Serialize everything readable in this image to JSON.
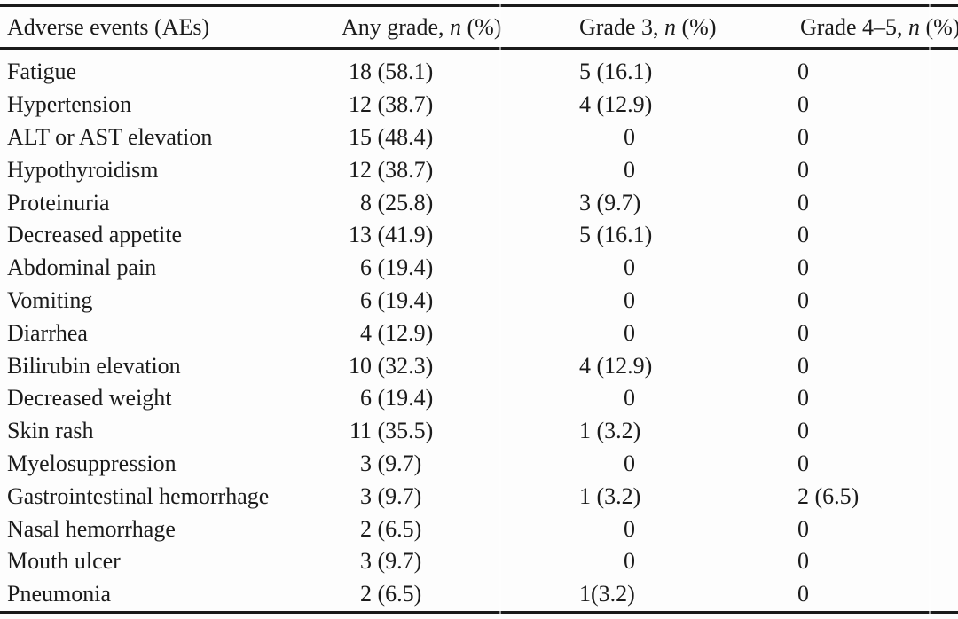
{
  "page": {
    "background_color": "#fdfdfd",
    "text_color": "#1b1b1b",
    "rule_color": "#1a1a1a"
  },
  "table": {
    "header": {
      "ae": "Adverse events (AEs)",
      "any_grade": {
        "pre": "Any grade, ",
        "n": "n",
        "post": " (%)"
      },
      "grade3": {
        "pre": "Grade 3, ",
        "n": "n",
        "post": " (%)"
      },
      "grade45": {
        "pre": "Grade 4–5, ",
        "n": "n",
        "post": " (%)"
      }
    },
    "rows": [
      {
        "ae": "Fatigue",
        "any_grade": {
          "n": "18",
          "rest": " (58.1)"
        },
        "grade3": {
          "n": "5",
          "rest": " (16.1)"
        },
        "grade45": {
          "n": "0",
          "rest": ""
        }
      },
      {
        "ae": "Hypertension",
        "any_grade": {
          "n": "12",
          "rest": " (38.7)"
        },
        "grade3": {
          "n": "4",
          "rest": " (12.9)"
        },
        "grade45": {
          "n": "0",
          "rest": ""
        }
      },
      {
        "ae": "ALT or AST elevation",
        "any_grade": {
          "n": "15",
          "rest": " (48.4)"
        },
        "grade3": {
          "n": "0",
          "rest": ""
        },
        "grade45": {
          "n": "0",
          "rest": ""
        }
      },
      {
        "ae": "Hypothyroidism",
        "any_grade": {
          "n": "12",
          "rest": " (38.7)"
        },
        "grade3": {
          "n": "0",
          "rest": ""
        },
        "grade45": {
          "n": "0",
          "rest": ""
        }
      },
      {
        "ae": "Proteinuria",
        "any_grade": {
          "n": "8",
          "rest": " (25.8)"
        },
        "grade3": {
          "n": "3",
          "rest": " (9.7)"
        },
        "grade45": {
          "n": "0",
          "rest": ""
        }
      },
      {
        "ae": "Decreased appetite",
        "any_grade": {
          "n": "13",
          "rest": " (41.9)"
        },
        "grade3": {
          "n": "5",
          "rest": " (16.1)"
        },
        "grade45": {
          "n": "0",
          "rest": ""
        }
      },
      {
        "ae": "Abdominal pain",
        "any_grade": {
          "n": "6",
          "rest": " (19.4)"
        },
        "grade3": {
          "n": "0",
          "rest": ""
        },
        "grade45": {
          "n": "0",
          "rest": ""
        }
      },
      {
        "ae": "Vomiting",
        "any_grade": {
          "n": "6",
          "rest": " (19.4)"
        },
        "grade3": {
          "n": "0",
          "rest": ""
        },
        "grade45": {
          "n": "0",
          "rest": ""
        }
      },
      {
        "ae": "Diarrhea",
        "any_grade": {
          "n": "4",
          "rest": " (12.9)"
        },
        "grade3": {
          "n": "0",
          "rest": ""
        },
        "grade45": {
          "n": "0",
          "rest": ""
        }
      },
      {
        "ae": "Bilirubin elevation",
        "any_grade": {
          "n": "10",
          "rest": " (32.3)"
        },
        "grade3": {
          "n": "4",
          "rest": " (12.9)"
        },
        "grade45": {
          "n": "0",
          "rest": ""
        }
      },
      {
        "ae": "Decreased weight",
        "any_grade": {
          "n": "6",
          "rest": " (19.4)"
        },
        "grade3": {
          "n": "0",
          "rest": ""
        },
        "grade45": {
          "n": "0",
          "rest": ""
        }
      },
      {
        "ae": "Skin rash",
        "any_grade": {
          "n": "11",
          "rest": " (35.5)"
        },
        "grade3": {
          "n": "1",
          "rest": " (3.2)"
        },
        "grade45": {
          "n": "0",
          "rest": ""
        }
      },
      {
        "ae": "Myelosuppression",
        "any_grade": {
          "n": "3",
          "rest": " (9.7)"
        },
        "grade3": {
          "n": "0",
          "rest": ""
        },
        "grade45": {
          "n": "0",
          "rest": ""
        }
      },
      {
        "ae": "Gastrointestinal hemorrhage",
        "any_grade": {
          "n": "3",
          "rest": " (9.7)"
        },
        "grade3": {
          "n": "1",
          "rest": " (3.2)"
        },
        "grade45": {
          "n": "2",
          "rest": " (6.5)"
        }
      },
      {
        "ae": "Nasal hemorrhage",
        "any_grade": {
          "n": "2",
          "rest": " (6.5)"
        },
        "grade3": {
          "n": "0",
          "rest": ""
        },
        "grade45": {
          "n": "0",
          "rest": ""
        }
      },
      {
        "ae": "Mouth ulcer",
        "any_grade": {
          "n": "3",
          "rest": " (9.7)"
        },
        "grade3": {
          "n": "0",
          "rest": ""
        },
        "grade45": {
          "n": "0",
          "rest": ""
        }
      },
      {
        "ae": "Pneumonia",
        "any_grade": {
          "n": "2",
          "rest": " (6.5)"
        },
        "grade3": {
          "n": "1",
          "rest": "(3.2)"
        },
        "grade45": {
          "n": "0",
          "rest": ""
        }
      }
    ]
  }
}
